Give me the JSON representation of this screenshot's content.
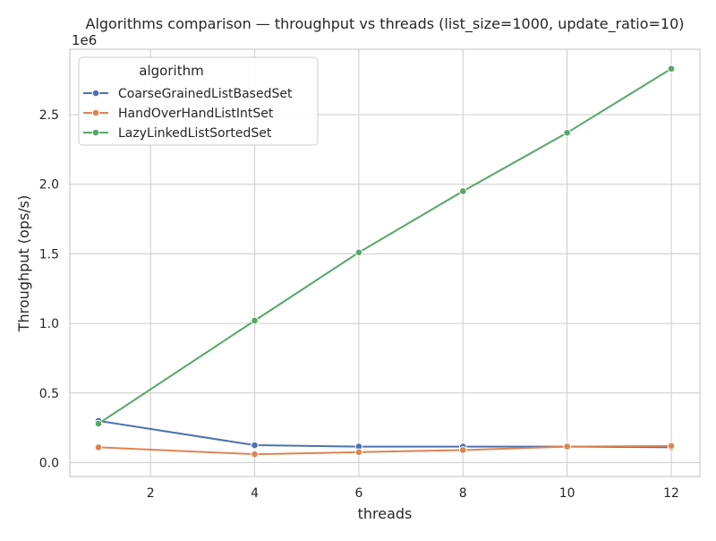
{
  "chart_data": {
    "type": "line",
    "title": "Algorithms comparison — throughput vs threads (list_size=1000, update_ratio=10)",
    "xlabel": "threads",
    "ylabel": "Throughput (ops/s)",
    "y_multiplier_label": "1e6",
    "xlim": [
      0.45,
      12.55
    ],
    "ylim": [
      -0.1,
      2.97
    ],
    "y_scale_factor": 1000000,
    "x_ticks": [
      2,
      4,
      6,
      8,
      10,
      12
    ],
    "x_tick_labels": [
      "2",
      "4",
      "6",
      "8",
      "10",
      "12"
    ],
    "y_ticks": [
      0.0,
      0.5,
      1.0,
      1.5,
      2.0,
      2.5
    ],
    "y_tick_labels": [
      "0.0",
      "0.5",
      "1.0",
      "1.5",
      "2.0",
      "2.5"
    ],
    "grid": true,
    "legend": {
      "title": "algorithm",
      "placement": "top-left"
    },
    "x": [
      1,
      4,
      6,
      8,
      10,
      12
    ],
    "series": [
      {
        "name": "CoarseGrainedListBasedSet",
        "color": "#4c72b0",
        "values": [
          0.3,
          0.125,
          0.115,
          0.115,
          0.115,
          0.11
        ]
      },
      {
        "name": "HandOverHandListIntSet",
        "color": "#dd8452",
        "values": [
          0.11,
          0.06,
          0.075,
          0.09,
          0.115,
          0.12
        ]
      },
      {
        "name": "LazyLinkedListSortedSet",
        "color": "#55a868",
        "values": [
          0.28,
          1.02,
          1.51,
          1.95,
          2.37,
          2.83
        ]
      }
    ]
  }
}
